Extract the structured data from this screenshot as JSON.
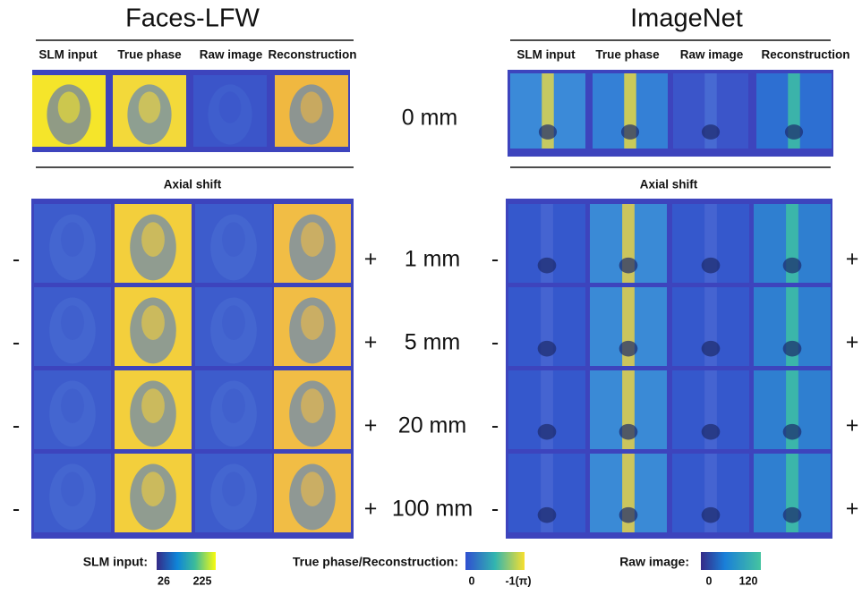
{
  "panels": [
    {
      "title": "Faces-LFW",
      "columns": [
        "SLM input",
        "True phase",
        "Raw image",
        "Reconstruction"
      ],
      "section": "Axial shift"
    },
    {
      "title": "ImageNet",
      "columns": [
        "SLM input",
        "True phase",
        "Raw image",
        "Reconstruction"
      ],
      "section": "Axial shift"
    }
  ],
  "zero_label": "0 mm",
  "shifts": [
    "1 mm",
    "5 mm",
    "20 mm",
    "100 mm"
  ],
  "minus": "-",
  "plus": "+",
  "colorbars": [
    {
      "label": "SLM input:",
      "ticks": [
        "26",
        "225"
      ]
    },
    {
      "label": "True phase/Reconstruction:",
      "ticks": [
        "0",
        "-1(π)"
      ]
    },
    {
      "label": "Raw image:",
      "ticks": [
        "0",
        "120"
      ]
    }
  ]
}
